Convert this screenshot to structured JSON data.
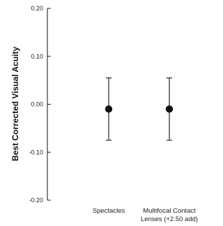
{
  "chart_data": {
    "type": "scatter",
    "title": "",
    "xlabel": "",
    "ylabel": "Best Corrected Visual Acuity",
    "categories": [
      [
        "Spectacles"
      ],
      [
        "Multifocal Contact",
        "Lenses (+2.50 add)"
      ]
    ],
    "points": [
      {
        "mean": -0.01,
        "upper": 0.055,
        "lower": -0.075
      },
      {
        "mean": -0.01,
        "upper": 0.055,
        "lower": -0.075
      }
    ],
    "ylim": [
      -0.2,
      0.2
    ],
    "yticks": [
      0.2,
      0.1,
      0.0,
      -0.1,
      -0.2
    ],
    "ytick_labels": [
      "0.20",
      "0.10",
      "0.00",
      "-0.10",
      "-0.20"
    ],
    "grid": false,
    "legend": false,
    "colors": {
      "axis": "#222222",
      "marker": "#111111",
      "errorbar": "#333333"
    }
  }
}
